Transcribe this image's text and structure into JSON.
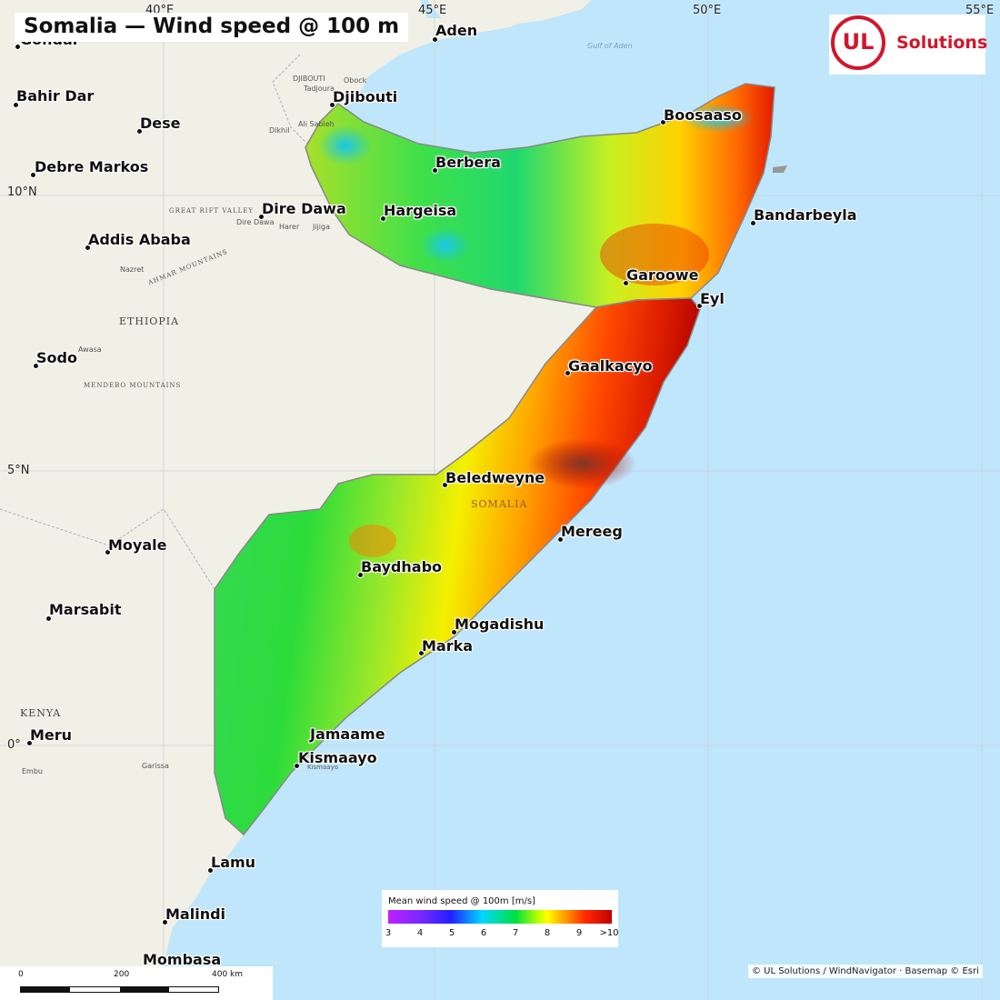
{
  "title": "Somalia — Wind speed @ 100 m",
  "logo": {
    "mark": "UL",
    "word": "Solutions",
    "color": "#d2162a"
  },
  "cities": [
    {
      "name": "Gondar"
    },
    {
      "name": "Bahir Dar"
    },
    {
      "name": "Dese"
    },
    {
      "name": "Debre Markos"
    },
    {
      "name": "Addis Ababa"
    },
    {
      "name": "Sodo"
    },
    {
      "name": "Dire Dawa"
    },
    {
      "name": "Hargeisa"
    },
    {
      "name": "Djibouti"
    },
    {
      "name": "Aden"
    },
    {
      "name": "Berbera"
    },
    {
      "name": "Boosaaso"
    },
    {
      "name": "Bandarbeyla"
    },
    {
      "name": "Garoowe"
    },
    {
      "name": "Eyl"
    },
    {
      "name": "Gaalkacyo"
    },
    {
      "name": "Beledweyne"
    },
    {
      "name": "Mereeg"
    },
    {
      "name": "Baydhabo"
    },
    {
      "name": "Mogadishu"
    },
    {
      "name": "Marka"
    },
    {
      "name": "Jamaame"
    },
    {
      "name": "Kismaayo"
    },
    {
      "name": "Moyale"
    },
    {
      "name": "Marsabit"
    },
    {
      "name": "Meru"
    },
    {
      "name": "Lamu"
    },
    {
      "name": "Malindi"
    },
    {
      "name": "Mombasa"
    }
  ],
  "basemap_labels": {
    "ethiopia": "ETHIOPIA",
    "kenya": "KENYA",
    "somalia": "SOMALIA",
    "obock": "Obock",
    "tadjoura": "Tadjoura",
    "djibouti_country": "DJIBOUTI",
    "ali_sabieh": "Ali Sabieh",
    "dikhil": "Dikhil",
    "harer": "Harer",
    "jijiga": "Jijiga",
    "nazret": "Nazret",
    "awasa": "Awasa",
    "dire_dawa_small": "Dire Dawa",
    "gulf_of_aden": "Gulf of Aden",
    "great_rift_valley": "GREAT RIFT VALLEY",
    "ahmar_mountains": "AHMAR MOUNTAINS",
    "mendebo_mountains": "MENDEBO MOUNTAINS",
    "kismaayo_small": "Kismaayo",
    "garissa": "Garissa",
    "embu": "Embu"
  },
  "graticule": {
    "lon": [
      "40°E",
      "45°E",
      "50°E",
      "55°E"
    ],
    "lat": [
      "10°N",
      "5°N",
      "0°"
    ]
  },
  "legend": {
    "title": "Mean wind speed @ 100m  [m/s]",
    "ticks": [
      "3",
      "4",
      "5",
      "6",
      "7",
      "8",
      "9",
      ">10"
    ],
    "min": 3,
    "max": 10
  },
  "scale_bar": {
    "labels": [
      "0",
      "200",
      "400 km"
    ]
  },
  "credits": "© UL Solutions / WindNavigator · Basemap © Esri"
}
